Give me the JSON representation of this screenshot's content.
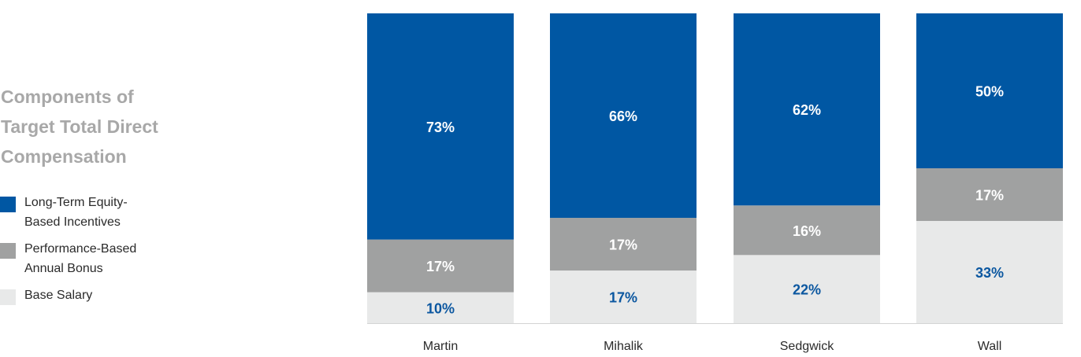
{
  "title_lines": [
    "Components of",
    "Target Total Direct",
    "Compensation"
  ],
  "legend": [
    {
      "lines": [
        "Long-Term Equity-",
        "Based Incentives"
      ],
      "color": "#0057a3"
    },
    {
      "lines": [
        "Performance-Based",
        "Annual Bonus"
      ],
      "color": "#a0a1a1"
    },
    {
      "lines": [
        "Base Salary"
      ],
      "color": "#e8e9e9"
    }
  ],
  "chart_data": {
    "type": "bar",
    "stacked": true,
    "categories": [
      "Martin",
      "Mihalik",
      "Sedgwick",
      "Wall"
    ],
    "series": [
      {
        "name": "Base Salary",
        "values": [
          10,
          17,
          22,
          33
        ],
        "labels": [
          "10%",
          "17%",
          "22%",
          "33%"
        ],
        "color": "#e8e9e9",
        "label_color": "#0b57a0"
      },
      {
        "name": "Performance-Based Annual Bonus",
        "values": [
          17,
          17,
          16,
          17
        ],
        "labels": [
          "17%",
          "17%",
          "16%",
          "17%"
        ],
        "color": "#a0a1a1",
        "label_color": "#ffffff"
      },
      {
        "name": "Long-Term Equity-Based Incentives",
        "values": [
          73,
          66,
          62,
          50
        ],
        "labels": [
          "73%",
          "66%",
          "62%",
          "50%"
        ],
        "color": "#0057a3",
        "label_color": "#ffffff"
      }
    ],
    "ylim": [
      0,
      100
    ],
    "grid": false,
    "legend_position": "left"
  }
}
